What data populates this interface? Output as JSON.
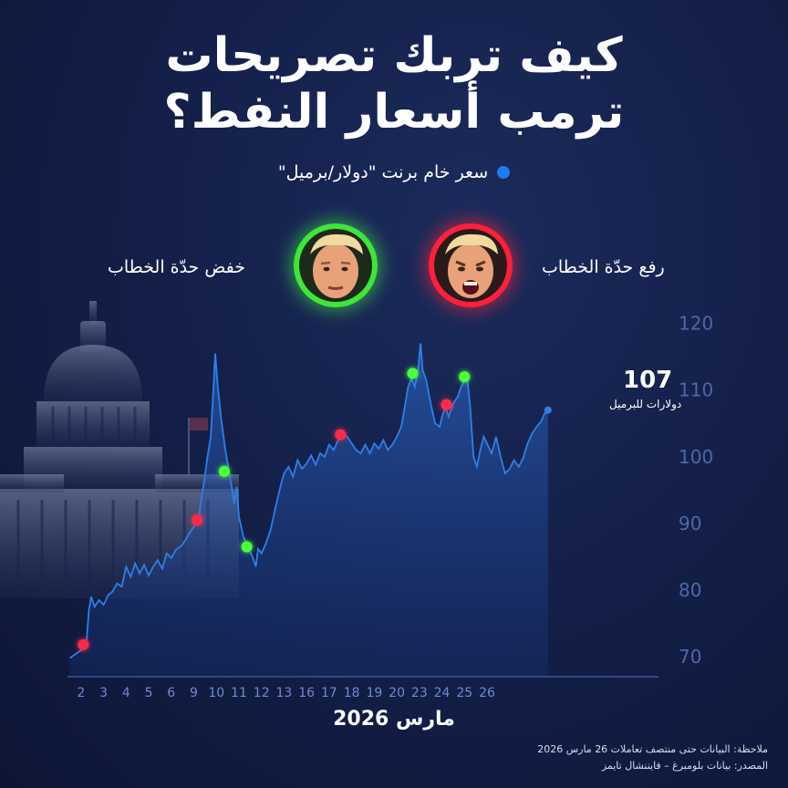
{
  "title_line1": "كيف تربك تصريحات",
  "title_line2": "ترمب أسعار النفط؟",
  "legend": {
    "series_label": "سعر خام برنت \"دولار/برميل\""
  },
  "tone_labels": {
    "raise": "رفع حدّة الخطاب",
    "lower": "خفض حدّة الخطاب"
  },
  "colors": {
    "line": "#2f7fe8",
    "raise_marker": "#ff2a4a",
    "lower_marker": "#4cff3a",
    "background": "#14204a"
  },
  "icons": {
    "raise_face": "angry-face-icon",
    "lower_face": "calm-face-icon",
    "landmark": "capitol-dome-icon"
  },
  "annotation": {
    "last_value": "107",
    "last_unit": "دولارات للبرميل"
  },
  "x_title": "مارس 2026",
  "note": "ملاحظة: البيانات حتى منتصف تعاملات 26 مارس 2026",
  "source": "المصدر: بيانات بلومبرغ – فايننشال تايمز",
  "chart_data": {
    "type": "area",
    "xlabel": "مارس 2026",
    "ylabel": "",
    "ylim": [
      67,
      122
    ],
    "xlim": [
      0.4,
      26.6
    ],
    "y_ticks": [
      70,
      80,
      90,
      100,
      110,
      120
    ],
    "x_ticks": [
      "2",
      "3",
      "4",
      "5",
      "6",
      "9",
      "10",
      "11",
      "12",
      "13",
      "16",
      "17",
      "18",
      "19",
      "20",
      "23",
      "24",
      "25",
      "26"
    ],
    "series": [
      {
        "name": "سعر خام برنت \"دولار/برميل\"",
        "points": [
          [
            0.5,
            69.8
          ],
          [
            0.8,
            70.5
          ],
          [
            1.1,
            71.2
          ],
          [
            1.25,
            72.5
          ],
          [
            1.35,
            77
          ],
          [
            1.45,
            79
          ],
          [
            1.6,
            77.5
          ],
          [
            1.8,
            78.5
          ],
          [
            2.0,
            77.8
          ],
          [
            2.2,
            79.2
          ],
          [
            2.4,
            79.8
          ],
          [
            2.6,
            81
          ],
          [
            2.8,
            80.5
          ],
          [
            3.0,
            83.5
          ],
          [
            3.2,
            82
          ],
          [
            3.4,
            84
          ],
          [
            3.6,
            82.5
          ],
          [
            3.8,
            83.8
          ],
          [
            4.0,
            82.2
          ],
          [
            4.2,
            83.5
          ],
          [
            4.4,
            84.5
          ],
          [
            4.6,
            83.2
          ],
          [
            4.8,
            85.5
          ],
          [
            5.0,
            84.8
          ],
          [
            5.2,
            86
          ],
          [
            5.5,
            86.8
          ],
          [
            5.8,
            88.5
          ],
          [
            6.0,
            89.5
          ],
          [
            6.1,
            91
          ],
          [
            6.2,
            89.8
          ],
          [
            6.3,
            93
          ],
          [
            6.45,
            96
          ],
          [
            6.6,
            99.8
          ],
          [
            6.75,
            103
          ],
          [
            6.85,
            109
          ],
          [
            6.95,
            115.5
          ],
          [
            7.05,
            111
          ],
          [
            7.2,
            106
          ],
          [
            7.4,
            101
          ],
          [
            7.6,
            97
          ],
          [
            7.8,
            93
          ],
          [
            7.9,
            95.5
          ],
          [
            8.0,
            91
          ],
          [
            8.2,
            88
          ],
          [
            8.4,
            86.5
          ],
          [
            8.6,
            85
          ],
          [
            8.75,
            83.5
          ],
          [
            8.85,
            86.2
          ],
          [
            9.0,
            85.5
          ],
          [
            9.2,
            87
          ],
          [
            9.4,
            89
          ],
          [
            9.6,
            92
          ],
          [
            9.8,
            95
          ],
          [
            10.0,
            97.5
          ],
          [
            10.2,
            98.5
          ],
          [
            10.4,
            97
          ],
          [
            10.6,
            99.5
          ],
          [
            10.8,
            98.2
          ],
          [
            11.0,
            99
          ],
          [
            11.2,
            100.2
          ],
          [
            11.4,
            98.8
          ],
          [
            11.6,
            100.5
          ],
          [
            11.8,
            100
          ],
          [
            12.0,
            101.8
          ],
          [
            12.2,
            101
          ],
          [
            12.4,
            102.5
          ],
          [
            12.6,
            103.5
          ],
          [
            12.8,
            103
          ],
          [
            13.0,
            102
          ],
          [
            13.2,
            101
          ],
          [
            13.4,
            100.5
          ],
          [
            13.6,
            101.8
          ],
          [
            13.8,
            100.5
          ],
          [
            14.0,
            102
          ],
          [
            14.2,
            101.2
          ],
          [
            14.4,
            102.5
          ],
          [
            14.6,
            101
          ],
          [
            14.8,
            101.8
          ],
          [
            15.0,
            103
          ],
          [
            15.2,
            104.5
          ],
          [
            15.35,
            107.5
          ],
          [
            15.5,
            110.5
          ],
          [
            15.65,
            111.8
          ],
          [
            15.8,
            110.5
          ],
          [
            15.95,
            113.5
          ],
          [
            16.05,
            117
          ],
          [
            16.15,
            113
          ],
          [
            16.3,
            111.5
          ],
          [
            16.5,
            108
          ],
          [
            16.7,
            105
          ],
          [
            16.9,
            104.5
          ],
          [
            17.0,
            106
          ],
          [
            17.15,
            107.5
          ],
          [
            17.3,
            106
          ],
          [
            17.5,
            108
          ],
          [
            17.7,
            109
          ],
          [
            17.85,
            110.5
          ],
          [
            18.0,
            111.5
          ],
          [
            18.1,
            112.5
          ],
          [
            18.25,
            107.5
          ],
          [
            18.4,
            100
          ],
          [
            18.55,
            98.5
          ],
          [
            18.7,
            101
          ],
          [
            18.85,
            103
          ],
          [
            19.0,
            102
          ],
          [
            19.2,
            100.5
          ],
          [
            19.4,
            103
          ],
          [
            19.6,
            100
          ],
          [
            19.8,
            97.5
          ],
          [
            20.0,
            98.2
          ],
          [
            20.2,
            99.5
          ],
          [
            20.4,
            98.5
          ],
          [
            20.6,
            99.8
          ],
          [
            20.8,
            102
          ],
          [
            21.0,
            103.5
          ],
          [
            21.2,
            104.5
          ],
          [
            21.4,
            105.3
          ],
          [
            21.55,
            106.5
          ],
          [
            21.7,
            107
          ]
        ],
        "markers": [
          {
            "x": 1.1,
            "y": 71.8,
            "tone": "raise"
          },
          {
            "x": 6.15,
            "y": 90.5,
            "tone": "raise"
          },
          {
            "x": 7.35,
            "y": 97.8,
            "tone": "lower"
          },
          {
            "x": 8.35,
            "y": 86.5,
            "tone": "lower"
          },
          {
            "x": 12.5,
            "y": 103.3,
            "tone": "raise"
          },
          {
            "x": 15.7,
            "y": 112.5,
            "tone": "lower"
          },
          {
            "x": 17.2,
            "y": 107.8,
            "tone": "raise"
          },
          {
            "x": 18.0,
            "y": 112.0,
            "tone": "lower"
          }
        ]
      }
    ]
  }
}
